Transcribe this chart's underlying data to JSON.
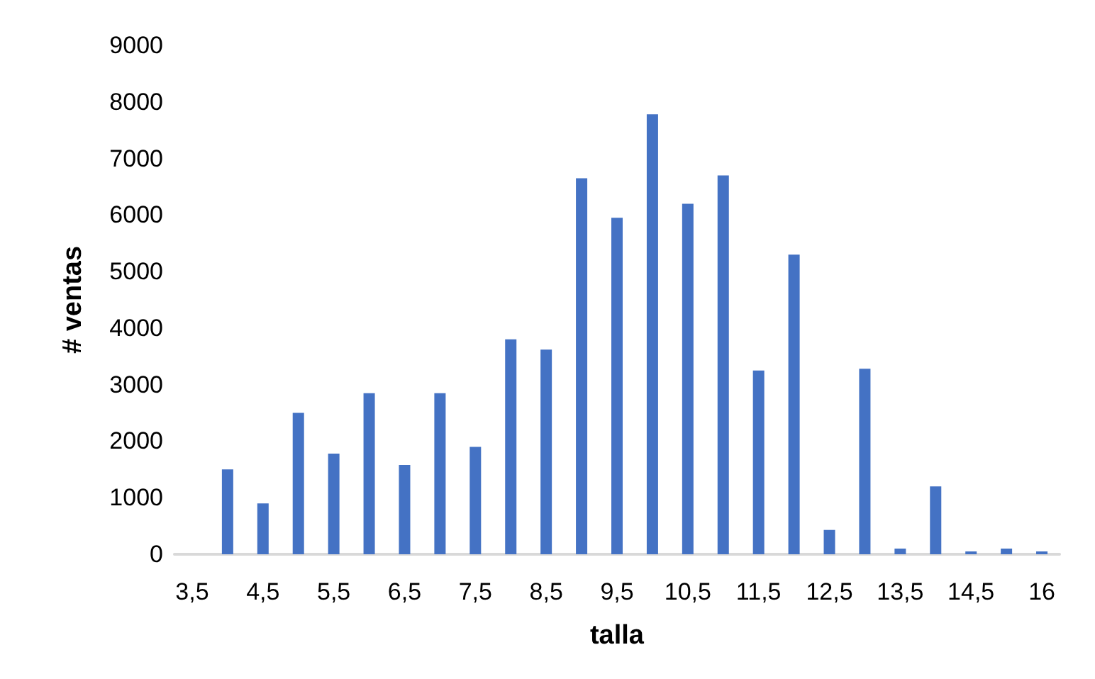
{
  "chart_data": {
    "type": "bar",
    "xlabel": "talla",
    "ylabel": "# ventas",
    "categories": [
      "3,5",
      null,
      "4,5",
      null,
      "5,5",
      null,
      "6,5",
      null,
      "7,5",
      null,
      "8,5",
      null,
      "9,5",
      null,
      "10,5",
      null,
      "11,5",
      null,
      "12,5",
      null,
      "13,5",
      null,
      "14,5",
      null,
      "16"
    ],
    "values": [
      null,
      1500,
      900,
      2500,
      1780,
      2850,
      1580,
      2850,
      1900,
      3800,
      3620,
      6650,
      5950,
      7780,
      6200,
      6700,
      3250,
      5300,
      430,
      3280,
      100,
      1200,
      50,
      100,
      50
    ],
    "color": "#4472c4",
    "ylim": [
      0,
      9000
    ],
    "yticks": [
      0,
      1000,
      2000,
      3000,
      4000,
      5000,
      6000,
      7000,
      8000,
      9000
    ],
    "grid": false
  }
}
